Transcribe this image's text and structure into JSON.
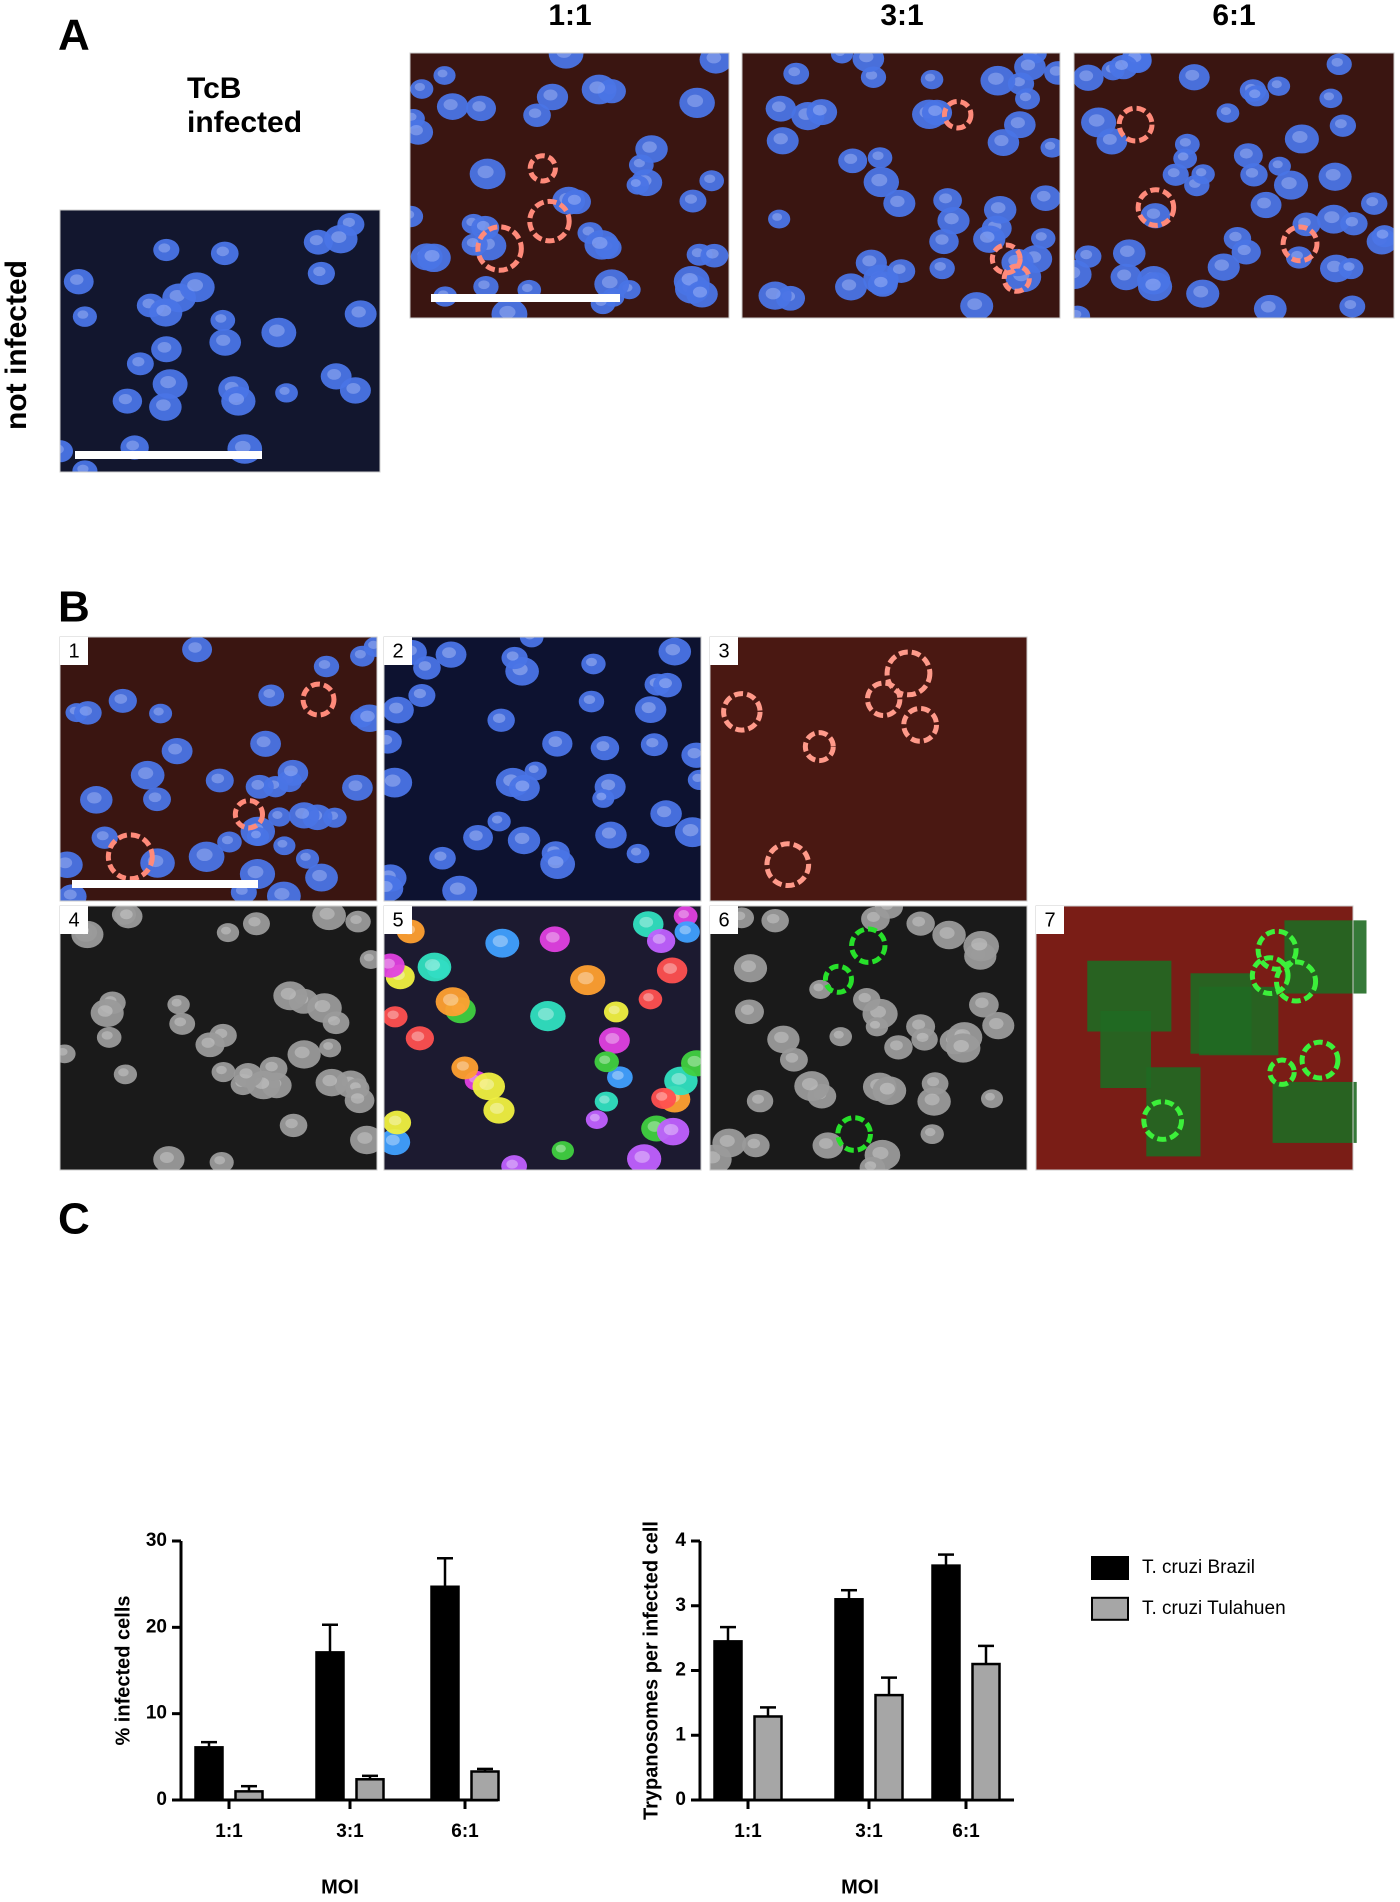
{
  "panel_a": {
    "label": "A",
    "column_label_lines": [
      "TcB",
      "infected"
    ],
    "row_label": "not infected",
    "moi_headers": [
      "1:1",
      "3:1",
      "6:1"
    ]
  },
  "panel_b": {
    "label": "B",
    "image_numbers": [
      "1",
      "2",
      "3",
      "4",
      "5",
      "6",
      "7"
    ]
  },
  "panel_c": {
    "label": "C"
  },
  "chart_data": [
    {
      "type": "bar",
      "y_label": "% infected cells",
      "x_label": "MOI",
      "categories": [
        "1:1",
        "3:1",
        "6:1"
      ],
      "series": [
        {
          "color": "#000000",
          "values": [
            6.1,
            17.1,
            24.7
          ],
          "errors": [
            0.6,
            3.2,
            3.3
          ]
        },
        {
          "color": "#a6a6a6",
          "values": [
            1.0,
            2.4,
            3.3
          ],
          "errors": [
            0.6,
            0.4,
            0.3
          ]
        }
      ],
      "ylim": [
        0,
        30
      ],
      "yticks": [
        0,
        10,
        20,
        30
      ]
    },
    {
      "type": "bar",
      "y_label": "Trypanosomes per infected cell",
      "x_label": "MOI",
      "categories": [
        "1:1",
        "3:1",
        "6:1"
      ],
      "series": [
        {
          "name": "T. cruzi Brazil",
          "color": "#000000",
          "values": [
            2.45,
            3.1,
            3.62
          ],
          "errors": [
            0.22,
            0.14,
            0.17
          ]
        },
        {
          "name": "T. cruzi Tulahuen",
          "color": "#a6a6a6",
          "values": [
            1.29,
            1.62,
            2.1
          ],
          "errors": [
            0.14,
            0.27,
            0.28
          ]
        }
      ],
      "ylim": [
        0,
        4
      ],
      "yticks": [
        0,
        1,
        2,
        3,
        4
      ]
    }
  ]
}
